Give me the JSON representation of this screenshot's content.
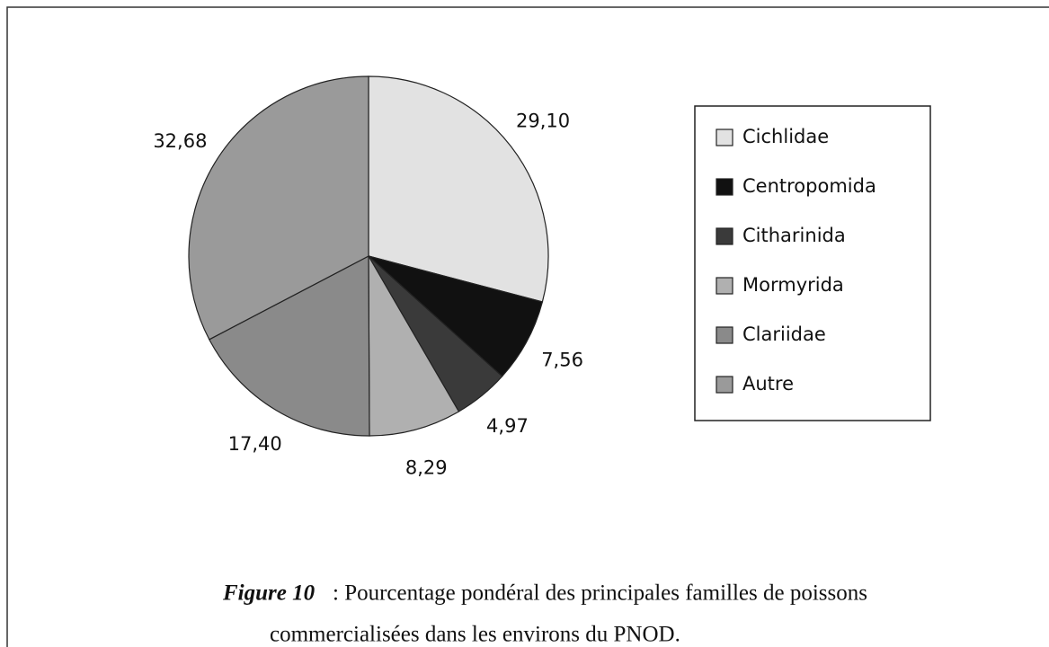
{
  "chart_data": {
    "type": "pie",
    "categories": [
      "Cichlidae",
      "Centropomida",
      "Citharinida",
      "Mormyrida",
      "Clariidae",
      "Autre"
    ],
    "values": [
      29.1,
      7.56,
      4.97,
      8.29,
      17.4,
      32.68
    ],
    "value_labels": [
      "29,10",
      "7,56",
      "4,97",
      "8,29",
      "17,40",
      "32,68"
    ],
    "colors": [
      "#e2e2e2",
      "#111111",
      "#3a3a3a",
      "#b0b0b0",
      "#8a8a8a",
      "#9a9a9a"
    ],
    "legend": "right",
    "caption_label": "Figure 10",
    "caption_lines": [
      ": Pourcentage pondéral des principales familles de poissons",
      "commercialisées dans les environs du PNOD."
    ]
  }
}
